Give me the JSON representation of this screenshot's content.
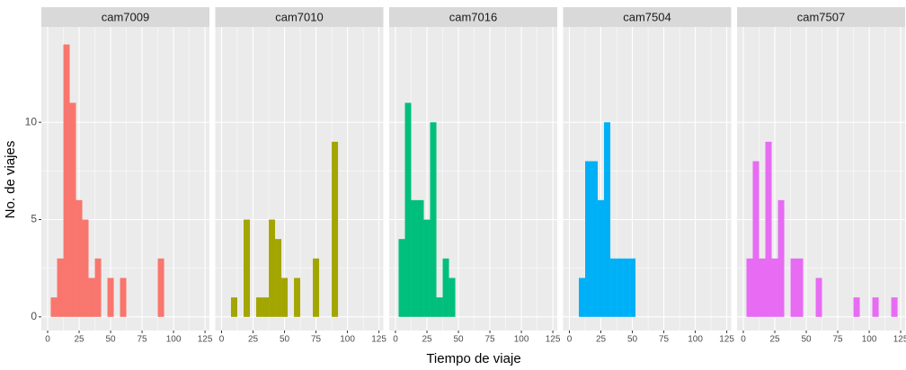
{
  "x_label": "Tiempo de viaje",
  "y_label": "No. de viajes",
  "chart_data": [
    {
      "type": "histogram",
      "title": "cam7009",
      "color": "#f8766d",
      "bins": [
        2.5,
        7.5,
        12.5,
        17.5,
        22.5,
        27.5,
        32.5,
        37.5,
        42.5,
        47.5,
        52.5,
        57.5,
        62.5,
        67.5,
        72.5,
        77.5,
        82.5,
        87.5,
        92.5,
        97.5,
        102.5,
        107.5,
        112.5,
        117.5,
        122.5
      ],
      "values": [
        1,
        3,
        14,
        11,
        6,
        5,
        2,
        3,
        0,
        2,
        0,
        2,
        0,
        0,
        0,
        0,
        0,
        3,
        0,
        0,
        0,
        0,
        0,
        0
      ],
      "xlim": [
        -5,
        128.5
      ],
      "ylim": [
        -0.7,
        14.9
      ],
      "xticks": [
        0,
        25,
        50,
        75,
        100,
        125
      ],
      "yticks": [
        0,
        5,
        10
      ],
      "grid": true
    },
    {
      "type": "histogram",
      "title": "cam7010",
      "color": "#a3a500",
      "bins": [
        2.5,
        7.5,
        12.5,
        17.5,
        22.5,
        27.5,
        32.5,
        37.5,
        42.5,
        47.5,
        52.5,
        57.5,
        62.5,
        67.5,
        72.5,
        77.5,
        82.5,
        87.5,
        92.5,
        97.5,
        102.5,
        107.5,
        112.5,
        117.5,
        122.5
      ],
      "values": [
        0,
        1,
        0,
        5,
        0,
        1,
        1,
        5,
        4,
        2,
        0,
        2,
        0,
        0,
        3,
        0,
        0,
        9,
        0,
        0,
        0,
        0,
        0,
        0
      ],
      "xlim": [
        -5,
        128.5
      ],
      "ylim": [
        -0.7,
        14.9
      ],
      "xticks": [
        0,
        25,
        50,
        75,
        100,
        125
      ],
      "yticks": [
        0,
        5,
        10
      ],
      "grid": true
    },
    {
      "type": "histogram",
      "title": "cam7016",
      "color": "#00bf7d",
      "bins": [
        2.5,
        7.5,
        12.5,
        17.5,
        22.5,
        27.5,
        32.5,
        37.5,
        42.5,
        47.5,
        52.5,
        57.5,
        62.5,
        67.5,
        72.5,
        77.5,
        82.5,
        87.5,
        92.5,
        97.5,
        102.5,
        107.5,
        112.5,
        117.5,
        122.5
      ],
      "values": [
        4,
        11,
        6,
        6,
        5,
        10,
        1,
        3,
        2,
        0,
        0,
        0,
        0,
        0,
        0,
        0,
        0,
        0,
        0,
        0,
        0,
        0,
        0,
        0
      ],
      "xlim": [
        -5,
        128.5
      ],
      "ylim": [
        -0.7,
        14.9
      ],
      "xticks": [
        0,
        25,
        50,
        75,
        100,
        125
      ],
      "yticks": [
        0,
        5,
        10
      ],
      "grid": true
    },
    {
      "type": "histogram",
      "title": "cam7504",
      "color": "#00b0f6",
      "bins": [
        2.5,
        7.5,
        12.5,
        17.5,
        22.5,
        27.5,
        32.5,
        37.5,
        42.5,
        47.5,
        52.5,
        57.5,
        62.5,
        67.5,
        72.5,
        77.5,
        82.5,
        87.5,
        92.5,
        97.5,
        102.5,
        107.5,
        112.5,
        117.5,
        122.5
      ],
      "values": [
        0,
        2,
        8,
        8,
        6,
        10,
        3,
        3,
        3,
        3,
        0,
        0,
        0,
        0,
        0,
        0,
        0,
        0,
        0,
        0,
        0,
        0,
        0,
        0
      ],
      "xlim": [
        -5,
        128.5
      ],
      "ylim": [
        -0.7,
        14.9
      ],
      "xticks": [
        0,
        25,
        50,
        75,
        100,
        125
      ],
      "yticks": [
        0,
        5,
        10
      ],
      "grid": true
    },
    {
      "type": "histogram",
      "title": "cam7507",
      "color": "#e76bf3",
      "bins": [
        2.5,
        7.5,
        12.5,
        17.5,
        22.5,
        27.5,
        32.5,
        37.5,
        42.5,
        47.5,
        52.5,
        57.5,
        62.5,
        67.5,
        72.5,
        77.5,
        82.5,
        87.5,
        92.5,
        97.5,
        102.5,
        107.5,
        112.5,
        117.5,
        122.5
      ],
      "values": [
        3,
        8,
        3,
        9,
        3,
        6,
        0,
        3,
        3,
        0,
        0,
        2,
        0,
        0,
        0,
        0,
        0,
        1,
        0,
        0,
        1,
        0,
        0,
        1
      ],
      "xlim": [
        -5,
        128.5
      ],
      "ylim": [
        -0.7,
        14.9
      ],
      "xticks": [
        0,
        25,
        50,
        75,
        100,
        125
      ],
      "yticks": [
        0,
        5,
        10
      ],
      "grid": true
    }
  ]
}
